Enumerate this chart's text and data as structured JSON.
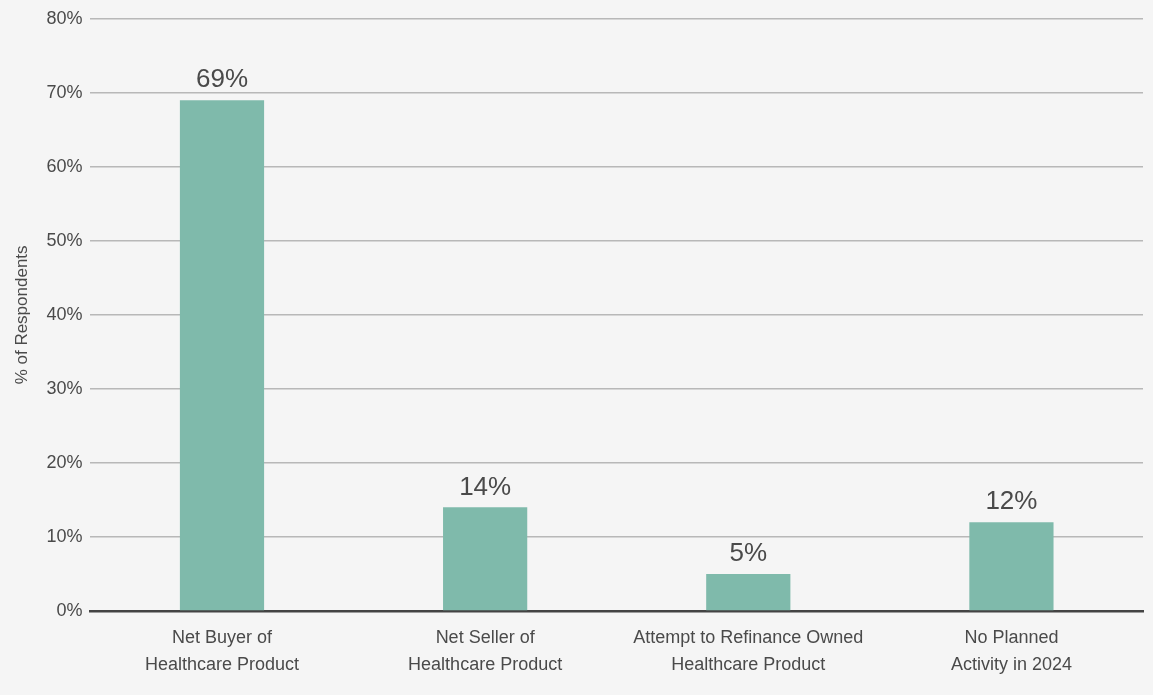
{
  "chart_data": {
    "type": "bar",
    "ylabel": "% of Respondents",
    "categories": [
      "Net Buyer of\nHealthcare Product",
      "Net Seller of\nHealthcare Product",
      "Attempt to Refinance Owned\nHealthcare Product",
      "No Planned\nActivity in 2024"
    ],
    "values": [
      69,
      14,
      5,
      12
    ],
    "color": "#7fbaab",
    "value_labels": [
      "69%",
      "14%",
      "5%",
      "12%"
    ],
    "ylim": [
      0,
      80
    ],
    "yticks": [
      {
        "value": 0,
        "label": "0%"
      },
      {
        "value": 10,
        "label": "10%"
      },
      {
        "value": 20,
        "label": "20%"
      },
      {
        "value": 30,
        "label": "30%"
      },
      {
        "value": 40,
        "label": "40%"
      },
      {
        "value": 50,
        "label": "50%"
      },
      {
        "value": 60,
        "label": "60%"
      },
      {
        "value": 70,
        "label": "70%"
      },
      {
        "value": 80,
        "label": "80%"
      }
    ],
    "grid": "y"
  }
}
